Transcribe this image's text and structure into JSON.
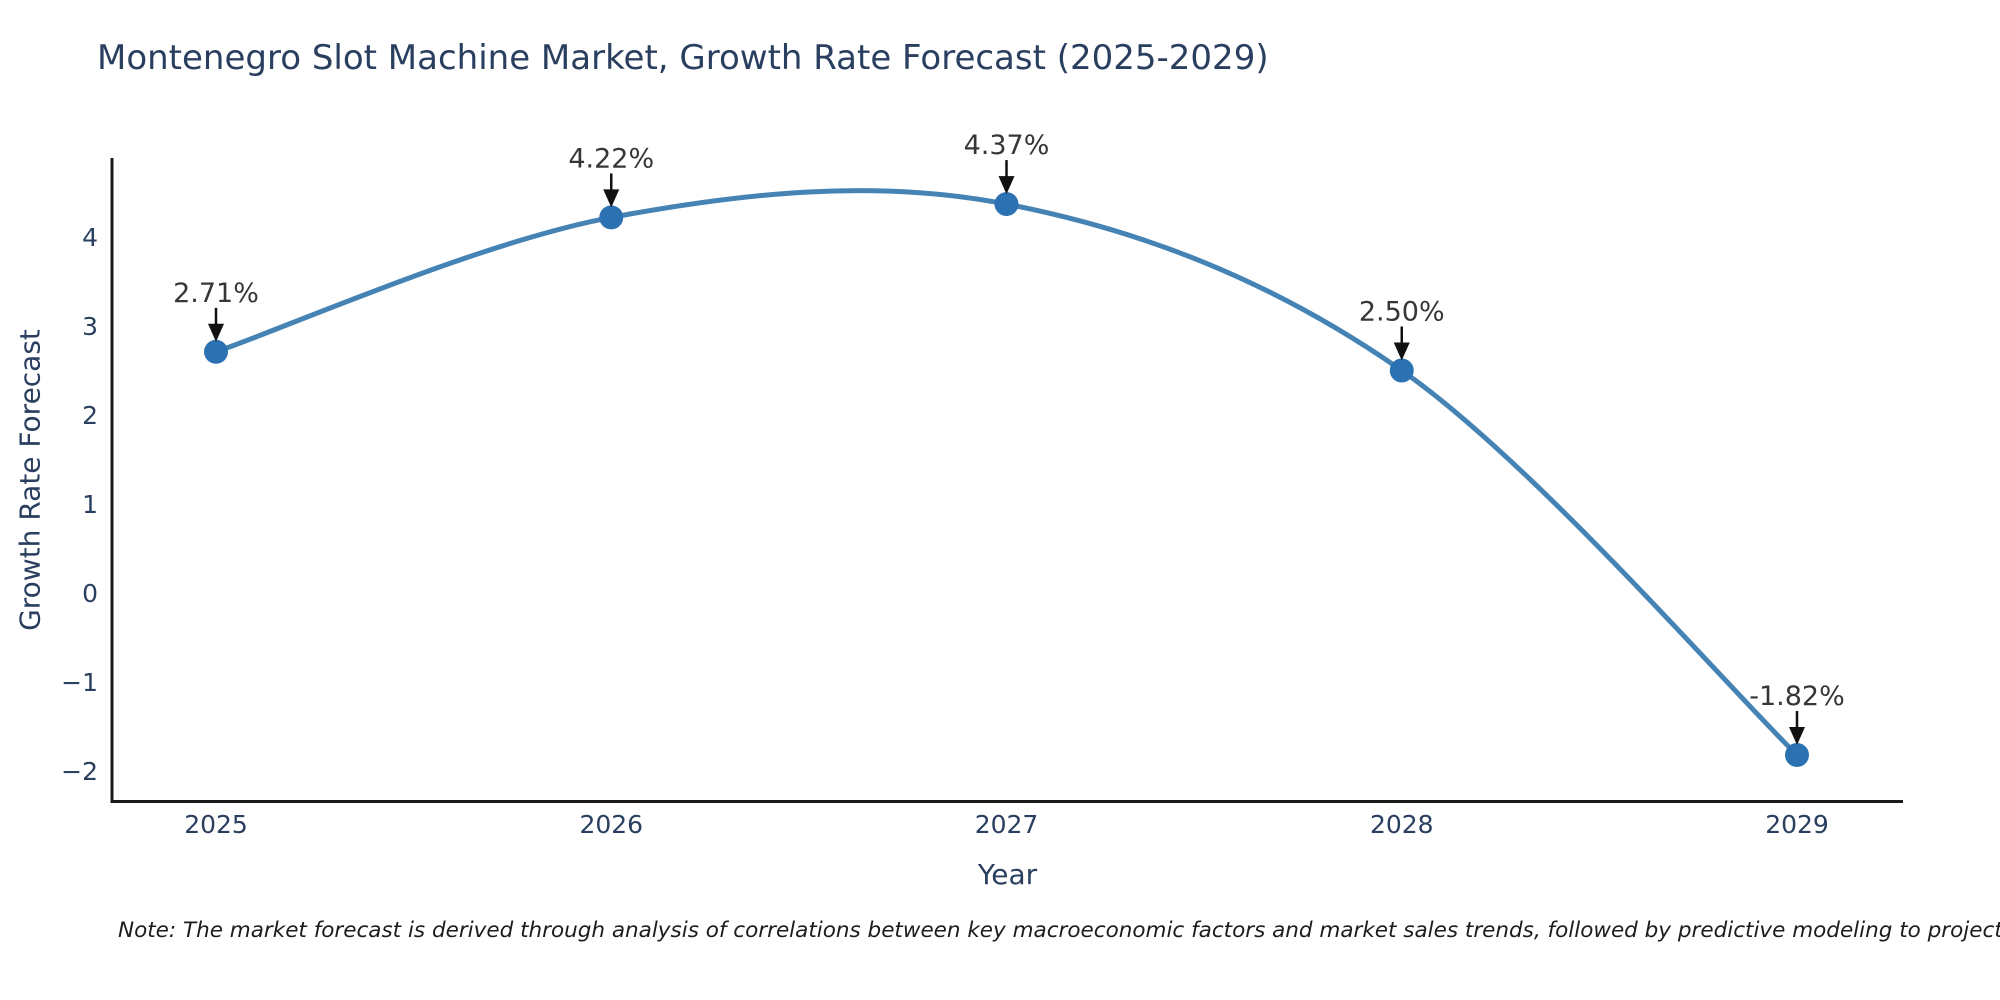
{
  "title": "Montenegro Slot Machine Market, Growth Rate Forecast (2025-2029)",
  "note": "Note: The market forecast is derived through analysis of correlations between key macroeconomic factors and market sales trends, followed by predictive modeling to project future sales",
  "chart_data": {
    "type": "line",
    "title": "Montenegro Slot Machine Market, Growth Rate Forecast (2025-2029)",
    "xlabel": "Year",
    "ylabel": "Growth Rate Forecast",
    "x": [
      2025,
      2026,
      2027,
      2028,
      2029
    ],
    "series": [
      {
        "name": "Growth Rate Forecast",
        "values": [
          2.71,
          4.22,
          4.37,
          2.5,
          -1.82
        ]
      }
    ],
    "point_labels": [
      "2.71%",
      "4.22%",
      "4.37%",
      "2.50%",
      "-1.82%"
    ],
    "xtick_labels": [
      "2025",
      "2026",
      "2027",
      "2028",
      "2029"
    ],
    "ytick_values": [
      4,
      3,
      2,
      1,
      0,
      -1,
      -2
    ],
    "ytick_labels": [
      "4",
      "3",
      "2",
      "1",
      "0",
      "−1",
      "−2"
    ],
    "ylim": [
      -2.34,
      4.89
    ],
    "xlim": [
      2024.74,
      2029.27
    ],
    "line_shape": "spline",
    "grid": false,
    "legend": "none",
    "colors": {
      "line": "#4583b5",
      "marker": "#2c72b2",
      "axis_line": "#1a1a1a",
      "tick_label": "#2a3f5f",
      "axis_title": "#2a3f5f",
      "annotation_text": "#363636",
      "annotation_arrow": "#111111",
      "title": "#2a3f5f",
      "background": "#ffffff"
    }
  }
}
